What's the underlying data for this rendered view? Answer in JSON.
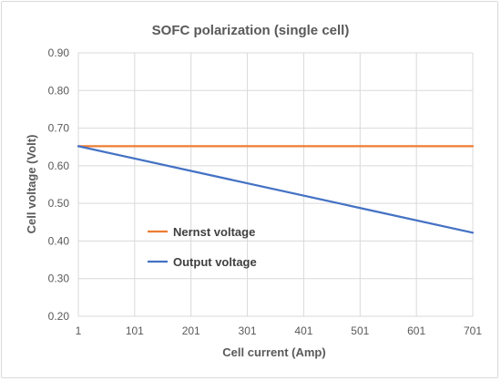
{
  "chart_data": {
    "type": "line",
    "title": "SOFC polarization (single cell)",
    "xlabel": "Cell current (Amp)",
    "ylabel": "Cell voltage (Volt)",
    "xlim": [
      1,
      701
    ],
    "ylim": [
      0.2,
      0.9
    ],
    "xticks": [
      "1",
      "101",
      "201",
      "301",
      "401",
      "501",
      "601",
      "701"
    ],
    "yticks": [
      "0.20",
      "0.30",
      "0.40",
      "0.50",
      "0.60",
      "0.70",
      "0.80",
      "0.90"
    ],
    "grid": true,
    "legend_position": "center-left",
    "series": [
      {
        "name": "Nernst voltage",
        "color": "#ED7D31",
        "x": [
          1,
          701
        ],
        "y": [
          0.652,
          0.652
        ]
      },
      {
        "name": "Output voltage",
        "color": "#4472C4",
        "x": [
          1,
          701
        ],
        "y": [
          0.652,
          0.422
        ]
      }
    ]
  }
}
